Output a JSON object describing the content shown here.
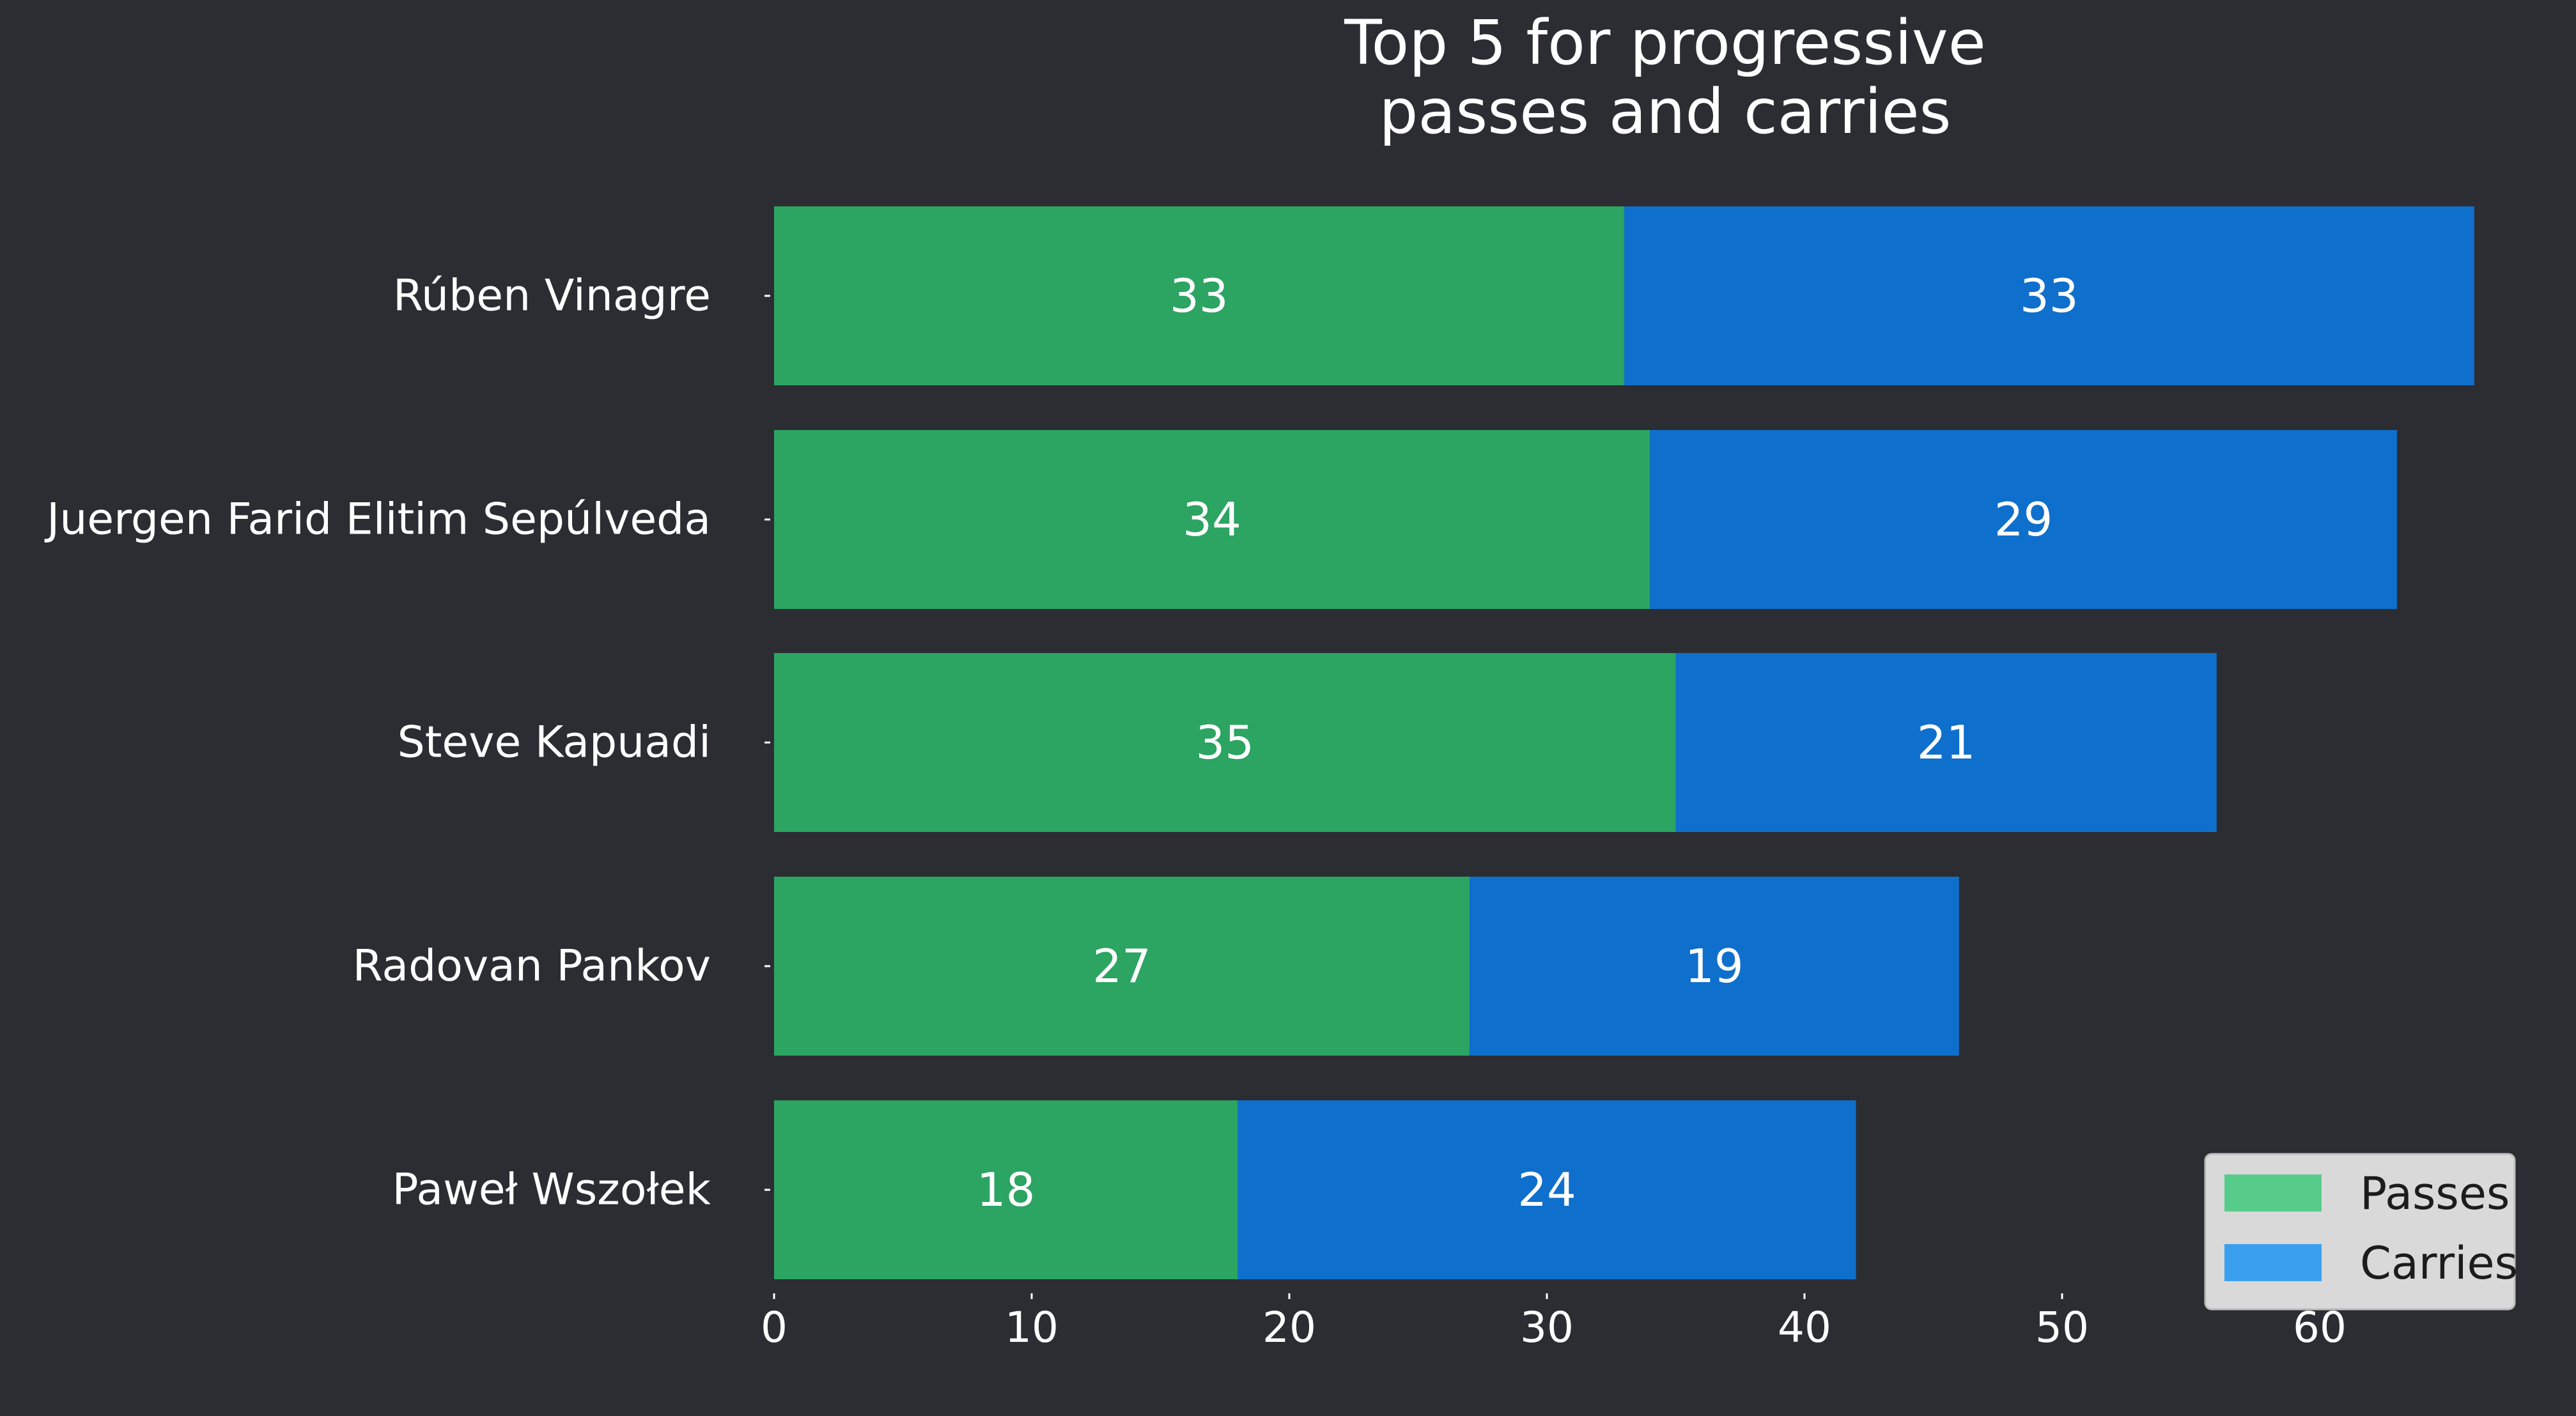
{
  "chart_data": {
    "type": "bar",
    "orientation": "horizontal",
    "stacked": true,
    "title": [
      "Top 5 for progressive",
      "passes and carries"
    ],
    "categories": [
      "Rúben Vinagre",
      "Juergen Farid Elitim Sepúlveda",
      "Steve Kapuadi",
      "Radovan Pankov",
      "Paweł Wszołek"
    ],
    "series": [
      {
        "name": "Passes",
        "values": [
          33,
          34,
          35,
          27,
          18
        ],
        "bar_color": "#2ca462",
        "legend_color": "#57cc8a"
      },
      {
        "name": "Carries",
        "values": [
          33,
          29,
          21,
          19,
          24
        ],
        "bar_color": "#0f6fcc",
        "legend_color": "#3b9ff0"
      }
    ],
    "xlim": [
      0,
      66
    ],
    "xticks": [
      0,
      10,
      20,
      30,
      40,
      50,
      60
    ],
    "xlabel": "",
    "ylabel": "",
    "grid": false,
    "legend_position": "bottom-right",
    "colors": {
      "background": "#2c2d33",
      "text": "#ffffff",
      "legend_background": "#d9d9d9",
      "legend_text": "#1c1c1c"
    }
  }
}
